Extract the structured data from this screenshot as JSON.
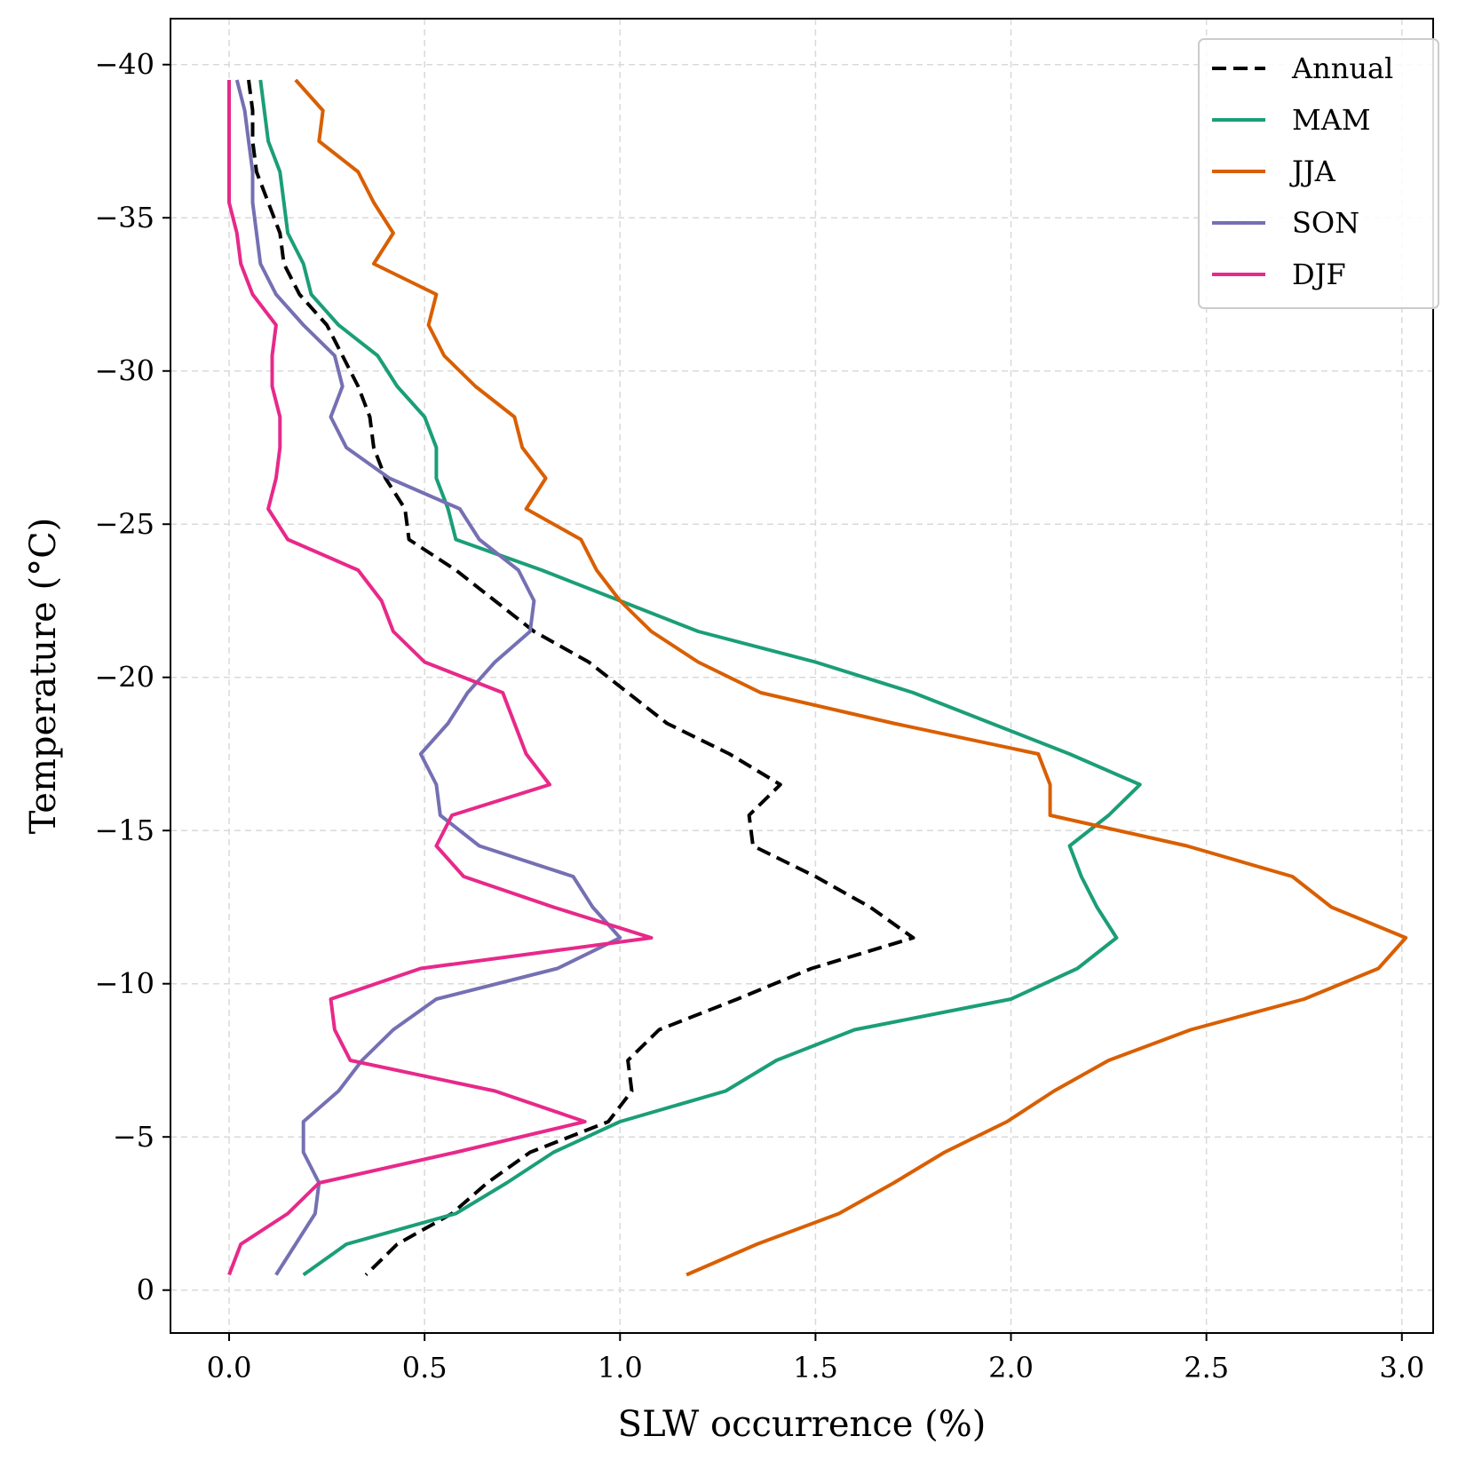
{
  "chart_data": {
    "type": "line",
    "title": "",
    "xlabel": "SLW occurrence (%)",
    "ylabel": "Temperature (°C)",
    "xlim": [
      -0.15,
      3.08
    ],
    "ylim": [
      1.4,
      -41.5
    ],
    "y_inverted": true,
    "grid": true,
    "legend_position": "top-right",
    "xticks": [
      0.0,
      0.5,
      1.0,
      1.5,
      2.0,
      2.5,
      3.0
    ],
    "xtick_labels": [
      "0.0",
      "0.5",
      "1.0",
      "1.5",
      "2.0",
      "2.5",
      "3.0"
    ],
    "yticks": [
      -40,
      -35,
      -30,
      -25,
      -20,
      -15,
      -10,
      -5,
      0
    ],
    "ytick_labels": [
      "−40",
      "−35",
      "−30",
      "−25",
      "−20",
      "−15",
      "−10",
      "−5",
      "0"
    ],
    "y": [
      -39.5,
      -38.5,
      -37.5,
      -36.5,
      -35.5,
      -34.5,
      -33.5,
      -32.5,
      -31.5,
      -30.5,
      -29.5,
      -28.5,
      -27.5,
      -26.5,
      -25.5,
      -24.5,
      -23.5,
      -22.5,
      -21.5,
      -20.5,
      -19.5,
      -18.5,
      -17.5,
      -16.5,
      -15.5,
      -14.5,
      -13.5,
      -12.5,
      -11.5,
      -10.5,
      -9.5,
      -8.5,
      -7.5,
      -6.5,
      -5.5,
      -4.5,
      -3.5,
      -2.5,
      -1.5,
      -0.5
    ],
    "series": [
      {
        "name": "Annual",
        "color": "#000000",
        "dashed": true,
        "x": [
          0.05,
          0.06,
          0.06,
          0.07,
          0.1,
          0.13,
          0.14,
          0.18,
          0.25,
          0.29,
          0.33,
          0.36,
          0.37,
          0.4,
          0.45,
          0.46,
          0.58,
          0.68,
          0.78,
          0.92,
          1.02,
          1.12,
          1.28,
          1.41,
          1.33,
          1.34,
          1.5,
          1.64,
          1.75,
          1.49,
          1.3,
          1.1,
          1.02,
          1.03,
          0.97,
          0.77,
          0.66,
          0.57,
          0.43,
          0.35
        ]
      },
      {
        "name": "MAM",
        "color": "#1b9e77",
        "dashed": false,
        "x": [
          0.08,
          0.09,
          0.1,
          0.13,
          0.14,
          0.15,
          0.19,
          0.21,
          0.28,
          0.38,
          0.43,
          0.5,
          0.53,
          0.53,
          0.56,
          0.58,
          0.8,
          1.0,
          1.2,
          1.5,
          1.75,
          1.95,
          2.15,
          2.33,
          2.25,
          2.15,
          2.18,
          2.22,
          2.27,
          2.17,
          2.0,
          1.6,
          1.4,
          1.27,
          1.0,
          0.83,
          0.71,
          0.58,
          0.3,
          0.19
        ]
      },
      {
        "name": "JJA",
        "color": "#d95f02",
        "dashed": false,
        "x": [
          0.17,
          0.24,
          0.23,
          0.33,
          0.37,
          0.42,
          0.37,
          0.53,
          0.51,
          0.55,
          0.63,
          0.73,
          0.75,
          0.81,
          0.76,
          0.9,
          0.94,
          1.0,
          1.08,
          1.2,
          1.36,
          1.7,
          2.07,
          2.1,
          2.1,
          2.45,
          2.72,
          2.82,
          3.01,
          2.94,
          2.75,
          2.46,
          2.25,
          2.11,
          1.99,
          1.83,
          1.7,
          1.56,
          1.35,
          1.17
        ]
      },
      {
        "name": "SON",
        "color": "#7570b3",
        "dashed": false,
        "x": [
          0.02,
          0.04,
          0.05,
          0.06,
          0.06,
          0.07,
          0.08,
          0.12,
          0.19,
          0.27,
          0.29,
          0.26,
          0.3,
          0.41,
          0.59,
          0.64,
          0.74,
          0.78,
          0.77,
          0.68,
          0.61,
          0.56,
          0.49,
          0.53,
          0.54,
          0.64,
          0.88,
          0.93,
          1.0,
          0.84,
          0.53,
          0.42,
          0.34,
          0.28,
          0.19,
          0.19,
          0.23,
          0.22,
          0.17,
          0.12
        ]
      },
      {
        "name": "DJF",
        "color": "#e7298a",
        "dashed": false,
        "x": [
          0.0,
          0.0,
          0.0,
          0.0,
          0.0,
          0.02,
          0.03,
          0.06,
          0.12,
          0.11,
          0.11,
          0.13,
          0.13,
          0.12,
          0.1,
          0.15,
          0.33,
          0.39,
          0.42,
          0.5,
          0.7,
          0.73,
          0.76,
          0.82,
          0.57,
          0.53,
          0.6,
          0.83,
          1.08,
          0.49,
          0.26,
          0.27,
          0.31,
          0.68,
          0.91,
          0.58,
          0.23,
          0.15,
          0.03,
          0.0
        ]
      }
    ]
  }
}
